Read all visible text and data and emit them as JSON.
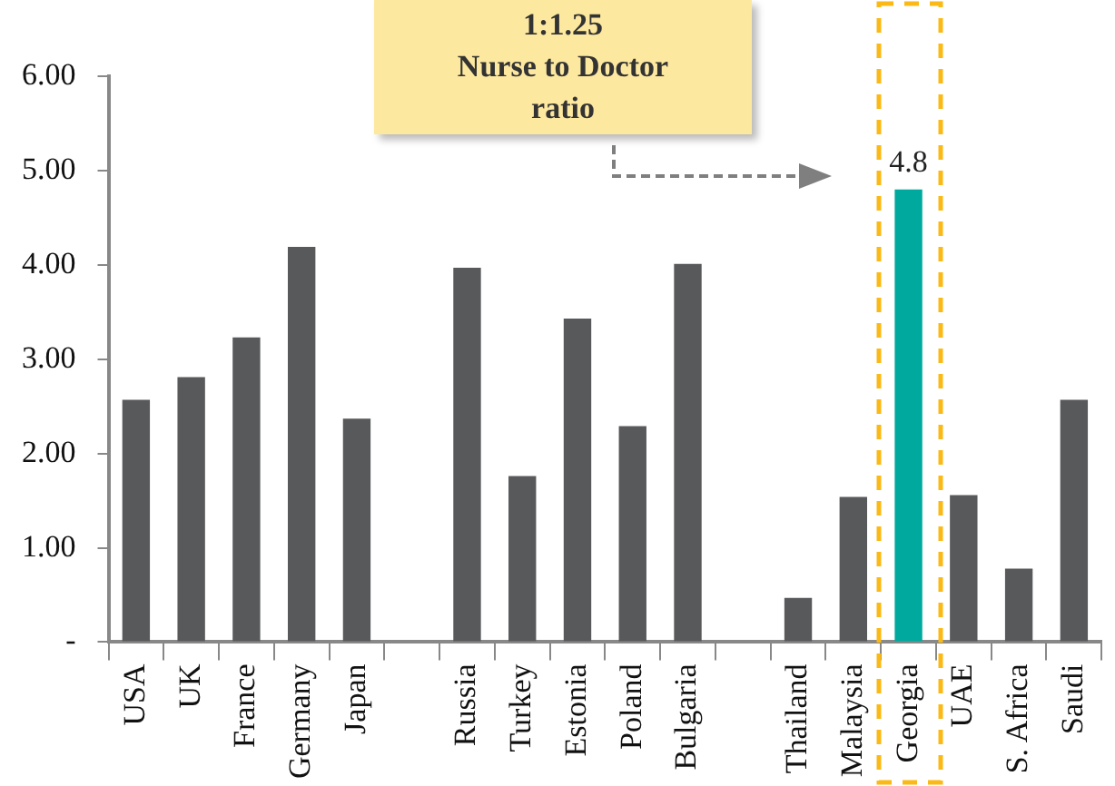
{
  "chart_data": {
    "type": "bar",
    "categories": [
      "USA",
      "UK",
      "France",
      "Germany",
      "Japan",
      null,
      "Russia",
      "Turkey",
      "Estonia",
      "Poland",
      "Bulgaria",
      null,
      "Thailand",
      "Malaysia",
      "Georgia",
      "UAE",
      "S. Africa",
      "Saudi"
    ],
    "values": [
      2.57,
      2.81,
      3.23,
      4.19,
      2.37,
      null,
      3.97,
      1.76,
      3.43,
      2.29,
      4.01,
      null,
      0.47,
      1.54,
      4.8,
      1.56,
      0.78,
      2.57
    ],
    "colors": [
      "#58595b",
      "#58595b",
      "#58595b",
      "#58595b",
      "#58595b",
      "#58595b",
      "#58595b",
      "#58595b",
      "#58595b",
      "#58595b",
      "#58595b",
      "#58595b",
      "#58595b",
      "#58595b",
      "#00a99d",
      "#58595b",
      "#58595b",
      "#58595b"
    ],
    "value_labels": [
      null,
      null,
      null,
      null,
      null,
      null,
      null,
      null,
      null,
      null,
      null,
      null,
      null,
      null,
      "4.8",
      null,
      null,
      null
    ],
    "ylim": [
      0,
      6
    ],
    "yticks": [
      {
        "value": 0,
        "label": "-"
      },
      {
        "value": 1,
        "label": "1.00"
      },
      {
        "value": 2,
        "label": "2.00"
      },
      {
        "value": 3,
        "label": "3.00"
      },
      {
        "value": 4,
        "label": "4.00"
      },
      {
        "value": 5,
        "label": "5.00"
      },
      {
        "value": 6,
        "label": "6.00"
      }
    ],
    "annotations": [
      "1:1.25\nNurse to Doctor\nratio"
    ],
    "grid": false,
    "legend": false
  }
}
